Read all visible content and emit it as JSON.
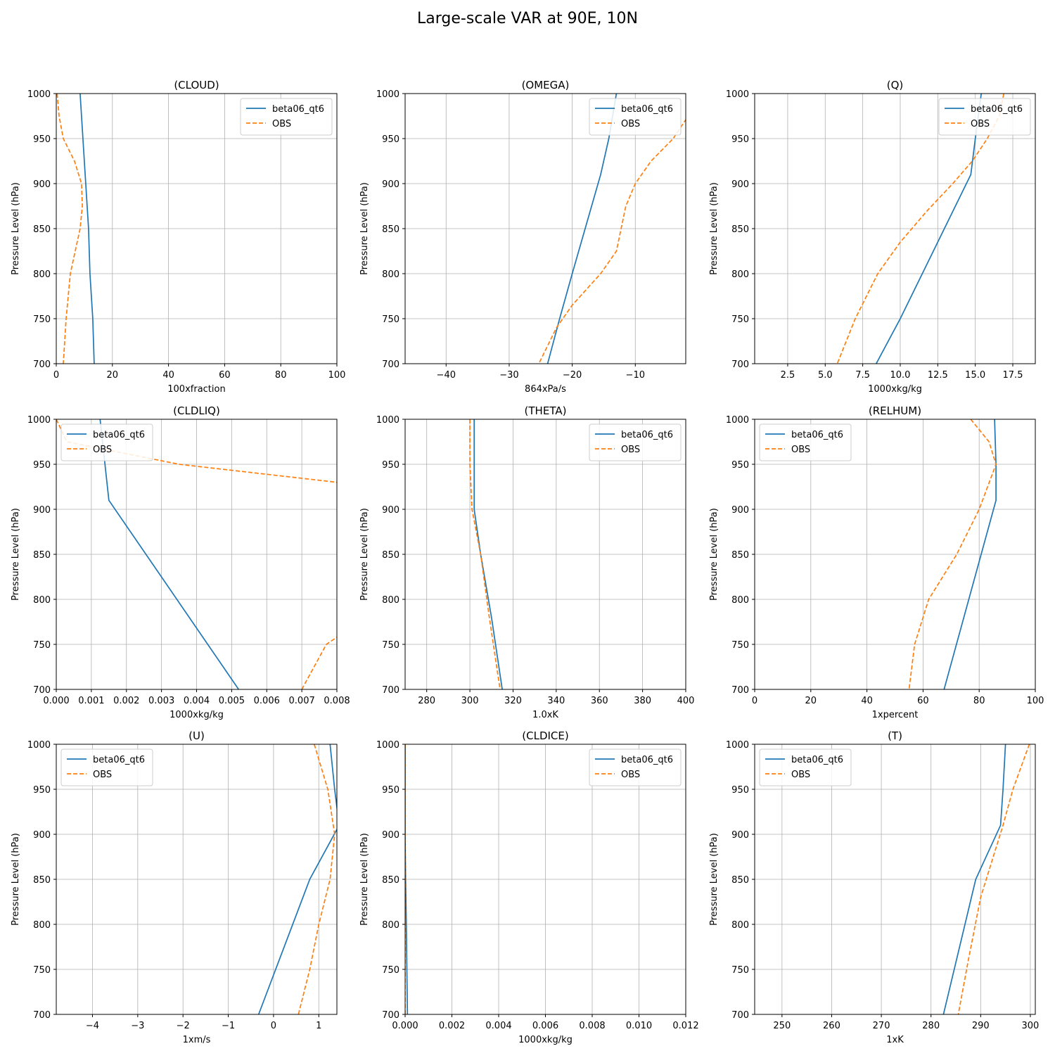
{
  "suptitle": "Large-scale VAR at 90E, 10N",
  "series_styles": {
    "beta06_qt6": {
      "color": "#1f77b4",
      "dash": "solid"
    },
    "OBS": {
      "color": "#ff7f0e",
      "dash": "dashed"
    }
  },
  "chart_data": [
    {
      "type": "line",
      "title": "(CLOUD)",
      "xlabel": "100xfraction",
      "ylabel": "Pressure Level (hPa)",
      "xlim": [
        0,
        100
      ],
      "ylim": [
        1000,
        700
      ],
      "grid": true,
      "legend": "top-right",
      "xticks": [
        0,
        20,
        40,
        60,
        80,
        100
      ],
      "xticklabels": [
        "0",
        "20",
        "40",
        "60",
        "80",
        "100"
      ],
      "yticks": [
        700,
        750,
        800,
        850,
        900,
        950,
        1000
      ],
      "series": [
        {
          "name": "beta06_qt6",
          "points": [
            [
              8.5,
              1000
            ],
            [
              9.0,
              975
            ],
            [
              9.5,
              950
            ],
            [
              10.0,
              925
            ],
            [
              10.5,
              900
            ],
            [
              11.0,
              875
            ],
            [
              11.5,
              850
            ],
            [
              12.0,
              800
            ],
            [
              13.0,
              750
            ],
            [
              13.5,
              700
            ]
          ]
        },
        {
          "name": "OBS",
          "points": [
            [
              0.3,
              1000
            ],
            [
              1.0,
              975
            ],
            [
              2.5,
              950
            ],
            [
              6.5,
              925
            ],
            [
              9.0,
              900
            ],
            [
              9.3,
              875
            ],
            [
              8.5,
              850
            ],
            [
              5.0,
              800
            ],
            [
              3.5,
              750
            ],
            [
              2.5,
              700
            ]
          ]
        }
      ]
    },
    {
      "type": "line",
      "title": "(OMEGA)",
      "xlabel": "864xPa/s",
      "ylabel": "Pressure Level (hPa)",
      "xlim": [
        -46.5,
        -2.0
      ],
      "ylim": [
        1000,
        700
      ],
      "grid": true,
      "legend": "top-right",
      "xticks": [
        -40,
        -30,
        -20,
        -10
      ],
      "xticklabels": [
        "−40",
        "−30",
        "−20",
        "−10"
      ],
      "yticks": [
        700,
        750,
        800,
        850,
        900,
        950,
        1000
      ],
      "series": [
        {
          "name": "beta06_qt6",
          "points": [
            [
              -13.0,
              1000
            ],
            [
              -14.2,
              950
            ],
            [
              -15.5,
              910
            ],
            [
              -20.0,
              800
            ],
            [
              -22.0,
              750
            ],
            [
              -23.9,
              700
            ]
          ]
        },
        {
          "name": "OBS",
          "points": [
            [
              -1.9,
              972
            ],
            [
              -4.0,
              950
            ],
            [
              -7.5,
              925
            ],
            [
              -10.0,
              900
            ],
            [
              -11.5,
              875
            ],
            [
              -13.0,
              825
            ],
            [
              -15.5,
              800
            ],
            [
              -20.0,
              765
            ],
            [
              -22.5,
              740
            ],
            [
              -25.3,
              700
            ]
          ]
        }
      ]
    },
    {
      "type": "line",
      "title": "(Q)",
      "xlabel": "1000xkg/kg",
      "ylabel": "Pressure Level (hPa)",
      "xlim": [
        0.3,
        19.0
      ],
      "ylim": [
        1000,
        700
      ],
      "grid": true,
      "legend": "top-right",
      "xticks": [
        2.5,
        5.0,
        7.5,
        10.0,
        12.5,
        15.0,
        17.5
      ],
      "xticklabels": [
        "2.5",
        "5.0",
        "7.5",
        "10.0",
        "12.5",
        "15.0",
        "17.5"
      ],
      "yticks": [
        700,
        750,
        800,
        850,
        900,
        950,
        1000
      ],
      "series": [
        {
          "name": "beta06_qt6",
          "points": [
            [
              15.4,
              1000
            ],
            [
              15.0,
              950
            ],
            [
              14.7,
              910
            ],
            [
              10.0,
              750
            ],
            [
              8.4,
              700
            ]
          ]
        },
        {
          "name": "OBS",
          "points": [
            [
              16.9,
              1000
            ],
            [
              16.6,
              975
            ],
            [
              15.8,
              950
            ],
            [
              14.8,
              925
            ],
            [
              13.5,
              900
            ],
            [
              11.8,
              870
            ],
            [
              10.0,
              835
            ],
            [
              8.5,
              800
            ],
            [
              7.0,
              750
            ],
            [
              5.8,
              700
            ]
          ]
        }
      ]
    },
    {
      "type": "line",
      "title": "(CLDLIQ)",
      "xlabel": "1000xkg/kg",
      "ylabel": "Pressure Level (hPa)",
      "xlim": [
        0.0,
        0.008
      ],
      "ylim": [
        1000,
        700
      ],
      "grid": true,
      "legend": "top-left",
      "xticks": [
        0.0,
        0.001,
        0.002,
        0.003,
        0.004,
        0.005,
        0.006,
        0.007,
        0.008
      ],
      "xticklabels": [
        "0.000",
        "0.001",
        "0.002",
        "0.003",
        "0.004",
        "0.005",
        "0.006",
        "0.007",
        "0.008"
      ],
      "yticks": [
        700,
        750,
        800,
        850,
        900,
        950,
        1000
      ],
      "series": [
        {
          "name": "beta06_qt6",
          "points": [
            [
              0.00125,
              1000
            ],
            [
              0.0015,
              910
            ],
            [
              0.0052,
              700
            ]
          ]
        },
        {
          "name": "OBS",
          "points": [
            [
              0.0,
              1000
            ],
            [
              0.0003,
              975
            ],
            [
              0.0035,
              950
            ],
            [
              0.008,
              930
            ]
          ]
        },
        {
          "name": "OBS",
          "points": [
            [
              0.007,
              700
            ],
            [
              0.0077,
              750
            ],
            [
              0.008,
              758
            ]
          ]
        }
      ]
    },
    {
      "type": "line",
      "title": "(THETA)",
      "xlabel": "1.0xK",
      "ylabel": "Pressure Level (hPa)",
      "xlim": [
        270,
        400
      ],
      "ylim": [
        1000,
        700
      ],
      "grid": true,
      "legend": "top-right",
      "xticks": [
        280,
        300,
        320,
        340,
        360,
        380,
        400
      ],
      "xticklabels": [
        "280",
        "300",
        "320",
        "340",
        "360",
        "380",
        "400"
      ],
      "yticks": [
        700,
        750,
        800,
        850,
        900,
        950,
        1000
      ],
      "series": [
        {
          "name": "beta06_qt6",
          "points": [
            [
              302,
              1000
            ],
            [
              302,
              950
            ],
            [
              302,
              900
            ],
            [
              305,
              850
            ],
            [
              310,
              780
            ],
            [
              315,
              700
            ]
          ]
        },
        {
          "name": "OBS",
          "points": [
            [
              300,
              1000
            ],
            [
              300,
              950
            ],
            [
              301,
              900
            ],
            [
              305,
              850
            ],
            [
              309,
              780
            ],
            [
              314,
              700
            ]
          ]
        }
      ]
    },
    {
      "type": "line",
      "title": "(RELHUM)",
      "xlabel": "1xpercent",
      "ylabel": "Pressure Level (hPa)",
      "xlim": [
        0,
        100
      ],
      "ylim": [
        1000,
        700
      ],
      "grid": true,
      "legend": "top-left",
      "xticks": [
        0,
        20,
        40,
        60,
        80,
        100
      ],
      "xticklabels": [
        "0",
        "20",
        "40",
        "60",
        "80",
        "100"
      ],
      "yticks": [
        700,
        750,
        800,
        850,
        900,
        950,
        1000
      ],
      "series": [
        {
          "name": "beta06_qt6",
          "points": [
            [
              85.5,
              1000
            ],
            [
              86,
              950
            ],
            [
              86,
              910
            ],
            [
              67.5,
              700
            ]
          ]
        },
        {
          "name": "OBS",
          "points": [
            [
              77,
              1000
            ],
            [
              83.5,
              975
            ],
            [
              86,
              950
            ],
            [
              80,
              900
            ],
            [
              72,
              850
            ],
            [
              62,
              800
            ],
            [
              57,
              750
            ],
            [
              55,
              700
            ]
          ]
        }
      ]
    },
    {
      "type": "line",
      "title": "(U)",
      "xlabel": "1xm/s",
      "ylabel": "Pressure Level (hPa)",
      "xlim": [
        -4.8,
        1.4
      ],
      "ylim": [
        1000,
        700
      ],
      "grid": true,
      "legend": "top-left",
      "xticks": [
        -4,
        -3,
        -2,
        -1,
        0,
        1
      ],
      "xticklabels": [
        "−4",
        "−3",
        "−2",
        "−1",
        "0",
        "1"
      ],
      "yticks": [
        700,
        750,
        800,
        850,
        900,
        950,
        1000
      ],
      "series": [
        {
          "name": "beta06_qt6",
          "points": [
            [
              1.25,
              1000
            ],
            [
              1.35,
              950
            ],
            [
              1.45,
              910
            ],
            [
              0.8,
              850
            ],
            [
              -0.33,
              700
            ]
          ]
        },
        {
          "name": "OBS",
          "points": [
            [
              0.9,
              1000
            ],
            [
              1.2,
              950
            ],
            [
              1.35,
              900
            ],
            [
              1.25,
              850
            ],
            [
              1.0,
              800
            ],
            [
              0.8,
              750
            ],
            [
              0.55,
              700
            ]
          ]
        }
      ]
    },
    {
      "type": "line",
      "title": "(CLDICE)",
      "xlabel": "1000xkg/kg",
      "ylabel": "Pressure Level (hPa)",
      "xlim": [
        0.0,
        0.012
      ],
      "ylim": [
        1000,
        700
      ],
      "grid": true,
      "legend": "top-right",
      "xticks": [
        0.0,
        0.002,
        0.004,
        0.006,
        0.008,
        0.01,
        0.012
      ],
      "xticklabels": [
        "0.000",
        "0.002",
        "0.004",
        "0.006",
        "0.008",
        "0.010",
        "0.012"
      ],
      "yticks": [
        700,
        750,
        800,
        850,
        900,
        950,
        1000
      ],
      "series": [
        {
          "name": "beta06_qt6",
          "points": [
            [
              0.0,
              1000
            ],
            [
              0.0,
              900
            ],
            [
              2e-05,
              850
            ],
            [
              5e-05,
              800
            ],
            [
              0.0001,
              700
            ]
          ]
        },
        {
          "name": "OBS",
          "points": [
            [
              0.0,
              1000
            ],
            [
              0.0,
              700
            ]
          ]
        }
      ]
    },
    {
      "type": "line",
      "title": "(T)",
      "xlabel": "1xK",
      "ylabel": "Pressure Level (hPa)",
      "xlim": [
        244.5,
        301.0
      ],
      "ylim": [
        1000,
        700
      ],
      "grid": true,
      "legend": "top-left",
      "xticks": [
        250,
        260,
        270,
        280,
        290,
        300
      ],
      "xticklabels": [
        "250",
        "260",
        "270",
        "280",
        "290",
        "300"
      ],
      "yticks": [
        700,
        750,
        800,
        850,
        900,
        950,
        1000
      ],
      "series": [
        {
          "name": "beta06_qt6",
          "points": [
            [
              295.0,
              1000
            ],
            [
              294.5,
              950
            ],
            [
              294.0,
              910
            ],
            [
              289.0,
              850
            ],
            [
              282.5,
              700
            ]
          ]
        },
        {
          "name": "OBS",
          "points": [
            [
              299.8,
              1000
            ],
            [
              296.5,
              950
            ],
            [
              294.5,
              910
            ],
            [
              290.0,
              830
            ],
            [
              287.5,
              760
            ],
            [
              285.5,
              700
            ]
          ]
        }
      ]
    }
  ]
}
